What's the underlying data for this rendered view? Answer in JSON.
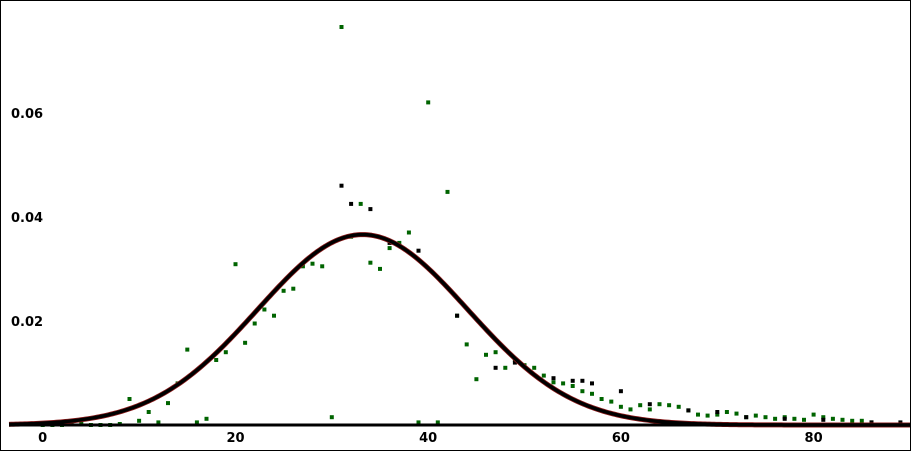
{
  "chart_data": {
    "type": "scatter",
    "x_ticks": [
      0,
      20,
      40,
      60,
      80
    ],
    "x_tick_labels": [
      "0",
      "20",
      "40",
      "60",
      "80"
    ],
    "y_ticks": [
      0.02,
      0.04,
      0.06
    ],
    "y_tick_labels": [
      "0.02",
      "0.04",
      "0.06"
    ],
    "xlim": [
      -3.5,
      90
    ],
    "ylim": [
      0,
      0.0765
    ],
    "grid": false,
    "colors": {
      "curve": "#000000",
      "curve_underlay": "#8b1a1a",
      "series_black": "#000000",
      "series_green": "#006400",
      "axis": "#000000"
    },
    "series": [
      {
        "color": "#006400",
        "x": [
          0,
          1,
          2,
          3,
          4,
          5,
          6,
          7,
          8,
          9,
          10,
          11,
          12,
          13,
          14,
          15,
          16,
          17,
          18,
          19,
          20,
          21,
          22,
          23,
          24,
          25,
          26,
          27,
          28,
          29,
          30,
          31,
          32,
          33,
          34,
          35,
          36,
          37,
          38,
          39,
          40,
          41,
          42,
          43,
          44,
          45,
          46,
          47,
          48,
          49,
          50,
          51,
          52,
          53,
          54,
          55,
          56,
          57,
          58,
          59,
          60,
          61,
          62,
          63,
          64,
          65,
          66,
          67,
          68,
          69,
          70,
          71,
          72,
          73,
          74,
          75,
          76,
          77,
          78,
          79,
          80,
          81,
          82,
          83,
          84,
          85,
          86
        ],
        "y": [
          0,
          0,
          0,
          0.0002,
          0.0002,
          0,
          0,
          0,
          0.0002,
          0.005,
          0.0008,
          0.0025,
          0.0005,
          0.0042,
          0.008,
          0.0145,
          0.0005,
          0.0012,
          0.0125,
          0.014,
          0.0309,
          0.0158,
          0.0195,
          0.0222,
          0.021,
          0.0258,
          0.0262,
          0.0305,
          0.031,
          0.0305,
          0.0015,
          0.0765,
          0.0362,
          0.0425,
          0.0312,
          0.03,
          0.034,
          0.035,
          0.037,
          0.0005,
          0.062,
          0.0005,
          0.0448,
          0.021,
          0.0155,
          0.0088,
          0.0135,
          0.014,
          0.011,
          0.0125,
          0.0115,
          0.011,
          0.0095,
          0.0082,
          0.008,
          0.0075,
          0.0065,
          0.006,
          0.005,
          0.0045,
          0.0035,
          0.003,
          0.0038,
          0.003,
          0.004,
          0.0038,
          0.0035,
          0.0028,
          0.002,
          0.0018,
          0.002,
          0.0025,
          0.0022,
          0.0015,
          0.0018,
          0.0015,
          0.0012,
          0.0015,
          0.0012,
          0.001,
          0.002,
          0.0015,
          0.0012,
          0.001,
          0.0008,
          0.0008,
          0.0005
        ]
      },
      {
        "color": "#000000",
        "x": [
          31,
          32,
          34,
          36,
          39,
          43,
          47,
          49,
          53,
          55,
          56,
          57,
          60,
          63,
          67,
          70,
          73,
          77,
          81,
          86,
          89
        ],
        "y": [
          0.046,
          0.0425,
          0.0415,
          0.035,
          0.0335,
          0.021,
          0.011,
          0.012,
          0.009,
          0.0085,
          0.0085,
          0.008,
          0.0065,
          0.004,
          0.0028,
          0.0025,
          0.0015,
          0.0012,
          0.001,
          0.0005,
          0.0005
        ]
      }
    ],
    "curve": {
      "type": "normal-density",
      "mean": 33.2,
      "sd": 10.9,
      "x_range": [
        -3.5,
        90
      ]
    }
  }
}
